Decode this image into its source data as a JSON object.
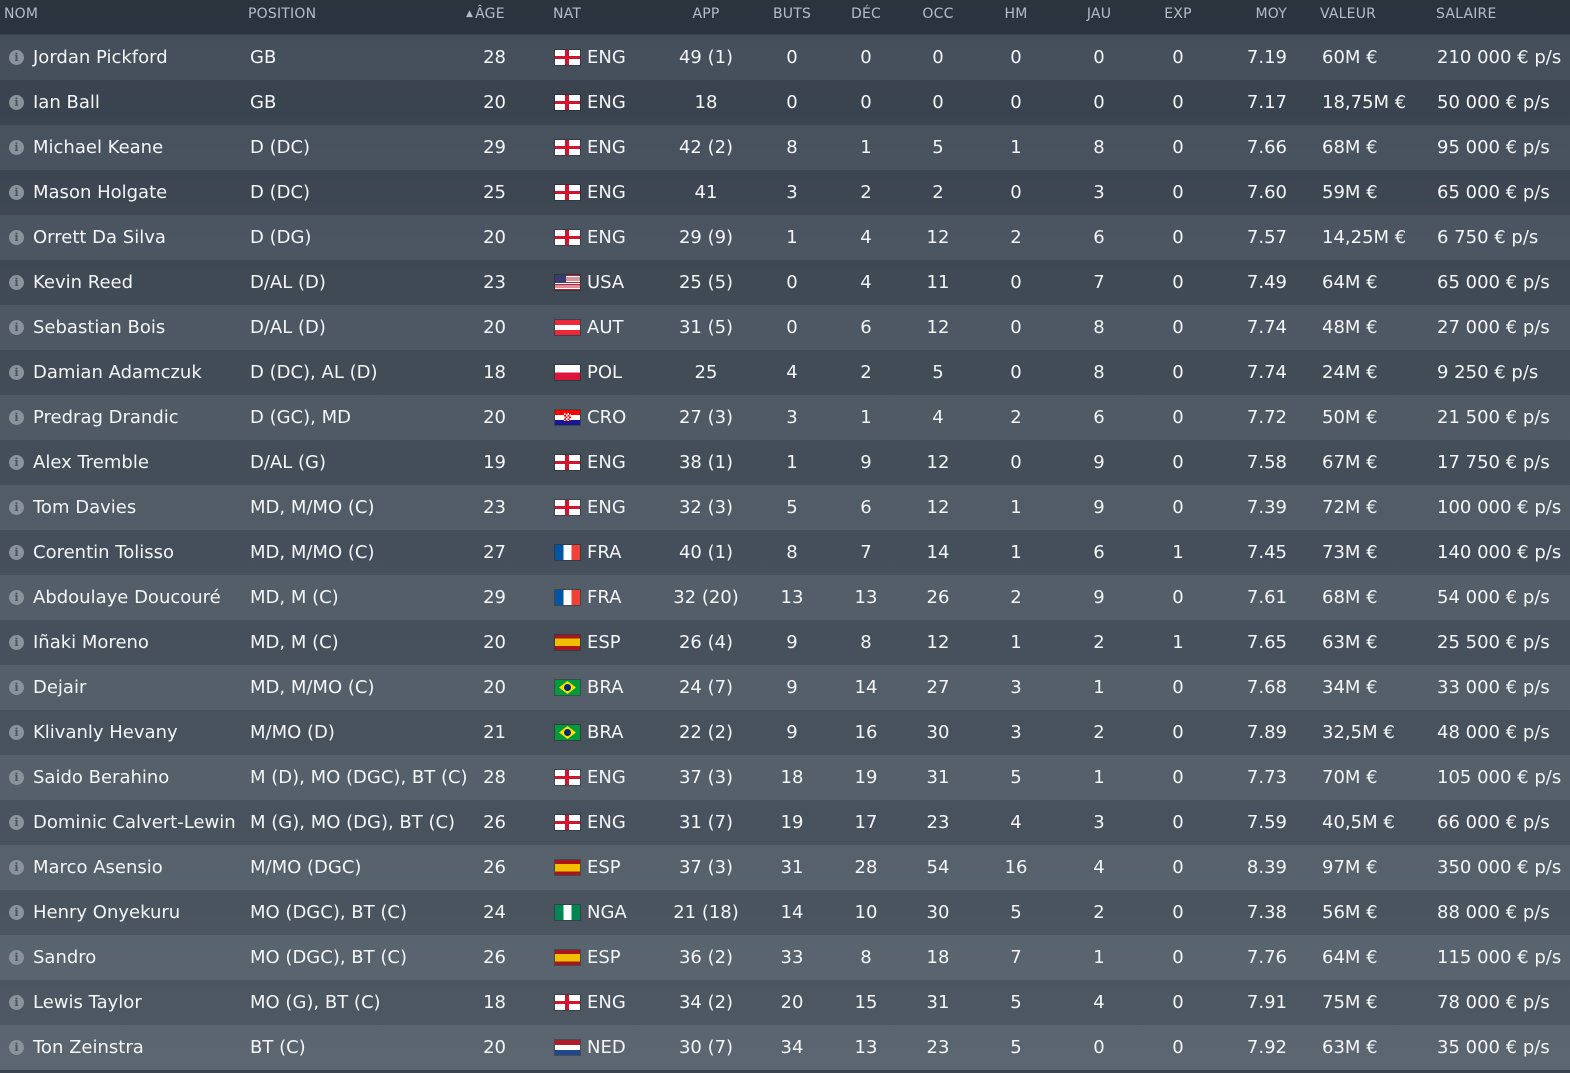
{
  "headers": {
    "nom": "NOM",
    "position": "POSITION",
    "age": "ÂGE",
    "nat": "NAT",
    "app": "APP",
    "buts": "BUTS",
    "dec": "DÉC",
    "occ": "OCC",
    "hm": "HM",
    "jau": "JAU",
    "exp": "EXP",
    "moy": "MOY",
    "valeur": "VALEUR",
    "salaire": "SALAIRE"
  },
  "sort": {
    "column": "age",
    "direction": "ascending",
    "icon": "sort-up-arrow-icon"
  },
  "flag_colors": {
    "eng_red": "#cf142b",
    "header_text": "#b5bec8",
    "row_text": "#f3f5f7"
  },
  "players": [
    {
      "name": "Jordan Pickford",
      "position": "GB",
      "age": "28",
      "flag": "eng",
      "nat": "ENG",
      "app": "49 (1)",
      "buts": "0",
      "dec": "0",
      "occ": "0",
      "hm": "0",
      "jau": "0",
      "exp": "0",
      "moy": "7.19",
      "valeur": "60M €",
      "salaire": "210 000 € p/s"
    },
    {
      "name": "Ian Ball",
      "position": "GB",
      "age": "20",
      "flag": "eng",
      "nat": "ENG",
      "app": "18",
      "buts": "0",
      "dec": "0",
      "occ": "0",
      "hm": "0",
      "jau": "0",
      "exp": "0",
      "moy": "7.17",
      "valeur": "18,75M €",
      "salaire": "50 000 € p/s"
    },
    {
      "name": "Michael Keane",
      "position": "D (DC)",
      "age": "29",
      "flag": "eng",
      "nat": "ENG",
      "app": "42 (2)",
      "buts": "8",
      "dec": "1",
      "occ": "5",
      "hm": "1",
      "jau": "8",
      "exp": "0",
      "moy": "7.66",
      "valeur": "68M €",
      "salaire": "95 000 € p/s"
    },
    {
      "name": "Mason Holgate",
      "position": "D (DC)",
      "age": "25",
      "flag": "eng",
      "nat": "ENG",
      "app": "41",
      "buts": "3",
      "dec": "2",
      "occ": "2",
      "hm": "0",
      "jau": "3",
      "exp": "0",
      "moy": "7.60",
      "valeur": "59M €",
      "salaire": "65 000 € p/s"
    },
    {
      "name": "Orrett Da Silva",
      "position": "D (DG)",
      "age": "20",
      "flag": "eng",
      "nat": "ENG",
      "app": "29 (9)",
      "buts": "1",
      "dec": "4",
      "occ": "12",
      "hm": "2",
      "jau": "6",
      "exp": "0",
      "moy": "7.57",
      "valeur": "14,25M €",
      "salaire": "6 750 € p/s"
    },
    {
      "name": "Kevin Reed",
      "position": "D/AL (D)",
      "age": "23",
      "flag": "usa",
      "nat": "USA",
      "app": "25 (5)",
      "buts": "0",
      "dec": "4",
      "occ": "11",
      "hm": "0",
      "jau": "7",
      "exp": "0",
      "moy": "7.49",
      "valeur": "64M €",
      "salaire": "65 000 € p/s"
    },
    {
      "name": "Sebastian Bois",
      "position": "D/AL (D)",
      "age": "20",
      "flag": "aut",
      "nat": "AUT",
      "app": "31 (5)",
      "buts": "0",
      "dec": "6",
      "occ": "12",
      "hm": "0",
      "jau": "8",
      "exp": "0",
      "moy": "7.74",
      "valeur": "48M €",
      "salaire": "27 000 € p/s"
    },
    {
      "name": "Damian Adamczuk",
      "position": "D (DC), AL (D)",
      "age": "18",
      "flag": "pol",
      "nat": "POL",
      "app": "25",
      "buts": "4",
      "dec": "2",
      "occ": "5",
      "hm": "0",
      "jau": "8",
      "exp": "0",
      "moy": "7.74",
      "valeur": "24M €",
      "salaire": "9 250 € p/s"
    },
    {
      "name": "Predrag Drandic",
      "position": "D (GC), MD",
      "age": "20",
      "flag": "cro",
      "nat": "CRO",
      "app": "27 (3)",
      "buts": "3",
      "dec": "1",
      "occ": "4",
      "hm": "2",
      "jau": "6",
      "exp": "0",
      "moy": "7.72",
      "valeur": "50M €",
      "salaire": "21 500 € p/s"
    },
    {
      "name": "Alex Tremble",
      "position": "D/AL (G)",
      "age": "19",
      "flag": "eng",
      "nat": "ENG",
      "app": "38 (1)",
      "buts": "1",
      "dec": "9",
      "occ": "12",
      "hm": "0",
      "jau": "9",
      "exp": "0",
      "moy": "7.58",
      "valeur": "67M €",
      "salaire": "17 750 € p/s"
    },
    {
      "name": "Tom Davies",
      "position": "MD, M/MO (C)",
      "age": "23",
      "flag": "eng",
      "nat": "ENG",
      "app": "32 (3)",
      "buts": "5",
      "dec": "6",
      "occ": "12",
      "hm": "1",
      "jau": "9",
      "exp": "0",
      "moy": "7.39",
      "valeur": "72M €",
      "salaire": "100 000 € p/s"
    },
    {
      "name": "Corentin Tolisso",
      "position": "MD, M/MO (C)",
      "age": "27",
      "flag": "fra",
      "nat": "FRA",
      "app": "40 (1)",
      "buts": "8",
      "dec": "7",
      "occ": "14",
      "hm": "1",
      "jau": "6",
      "exp": "1",
      "moy": "7.45",
      "valeur": "73M €",
      "salaire": "140 000 € p/s"
    },
    {
      "name": "Abdoulaye Doucouré",
      "position": "MD, M (C)",
      "age": "29",
      "flag": "fra",
      "nat": "FRA",
      "app": "32 (20)",
      "buts": "13",
      "dec": "13",
      "occ": "26",
      "hm": "2",
      "jau": "9",
      "exp": "0",
      "moy": "7.61",
      "valeur": "68M €",
      "salaire": "54 000 € p/s"
    },
    {
      "name": "Iñaki Moreno",
      "position": "MD, M (C)",
      "age": "20",
      "flag": "esp",
      "nat": "ESP",
      "app": "26 (4)",
      "buts": "9",
      "dec": "8",
      "occ": "12",
      "hm": "1",
      "jau": "2",
      "exp": "1",
      "moy": "7.65",
      "valeur": "63M €",
      "salaire": "25 500 € p/s"
    },
    {
      "name": "Dejair",
      "position": "MD, M/MO (C)",
      "age": "20",
      "flag": "bra",
      "nat": "BRA",
      "app": "24 (7)",
      "buts": "9",
      "dec": "14",
      "occ": "27",
      "hm": "3",
      "jau": "1",
      "exp": "0",
      "moy": "7.68",
      "valeur": "34M €",
      "salaire": "33 000 € p/s"
    },
    {
      "name": "Klivanly Hevany",
      "position": "M/MO (D)",
      "age": "21",
      "flag": "bra",
      "nat": "BRA",
      "app": "22 (2)",
      "buts": "9",
      "dec": "16",
      "occ": "30",
      "hm": "3",
      "jau": "2",
      "exp": "0",
      "moy": "7.89",
      "valeur": "32,5M €",
      "salaire": "48 000 € p/s"
    },
    {
      "name": "Saido Berahino",
      "position": "M (D), MO (DGC), BT (C)",
      "age": "28",
      "flag": "eng",
      "nat": "ENG",
      "app": "37 (3)",
      "buts": "18",
      "dec": "19",
      "occ": "31",
      "hm": "5",
      "jau": "1",
      "exp": "0",
      "moy": "7.73",
      "valeur": "70M €",
      "salaire": "105 000 € p/s"
    },
    {
      "name": "Dominic Calvert-Lewin",
      "position": "M (G), MO (DG), BT (C)",
      "age": "26",
      "flag": "eng",
      "nat": "ENG",
      "app": "31 (7)",
      "buts": "19",
      "dec": "17",
      "occ": "23",
      "hm": "4",
      "jau": "3",
      "exp": "0",
      "moy": "7.59",
      "valeur": "40,5M €",
      "salaire": "66 000 € p/s"
    },
    {
      "name": "Marco Asensio",
      "position": "M/MO (DGC)",
      "age": "26",
      "flag": "esp",
      "nat": "ESP",
      "app": "37 (3)",
      "buts": "31",
      "dec": "28",
      "occ": "54",
      "hm": "16",
      "jau": "4",
      "exp": "0",
      "moy": "8.39",
      "valeur": "97M €",
      "salaire": "350 000 € p/s"
    },
    {
      "name": "Henry Onyekuru",
      "position": "MO (DGC), BT (C)",
      "age": "24",
      "flag": "nga",
      "nat": "NGA",
      "app": "21 (18)",
      "buts": "14",
      "dec": "10",
      "occ": "30",
      "hm": "5",
      "jau": "2",
      "exp": "0",
      "moy": "7.38",
      "valeur": "56M €",
      "salaire": "88 000 € p/s"
    },
    {
      "name": "Sandro",
      "position": "MO (DGC), BT (C)",
      "age": "26",
      "flag": "esp",
      "nat": "ESP",
      "app": "36 (2)",
      "buts": "33",
      "dec": "8",
      "occ": "18",
      "hm": "7",
      "jau": "1",
      "exp": "0",
      "moy": "7.76",
      "valeur": "64M €",
      "salaire": "115 000 € p/s"
    },
    {
      "name": "Lewis Taylor",
      "position": "MO (G), BT (C)",
      "age": "18",
      "flag": "eng",
      "nat": "ENG",
      "app": "34 (2)",
      "buts": "20",
      "dec": "15",
      "occ": "31",
      "hm": "5",
      "jau": "4",
      "exp": "0",
      "moy": "7.91",
      "valeur": "75M €",
      "salaire": "78 000 € p/s"
    },
    {
      "name": "Ton Zeinstra",
      "position": "BT (C)",
      "age": "20",
      "flag": "ned",
      "nat": "NED",
      "app": "30 (7)",
      "buts": "34",
      "dec": "13",
      "occ": "23",
      "hm": "5",
      "jau": "0",
      "exp": "0",
      "moy": "7.92",
      "valeur": "63M €",
      "salaire": "35 000 € p/s"
    }
  ]
}
